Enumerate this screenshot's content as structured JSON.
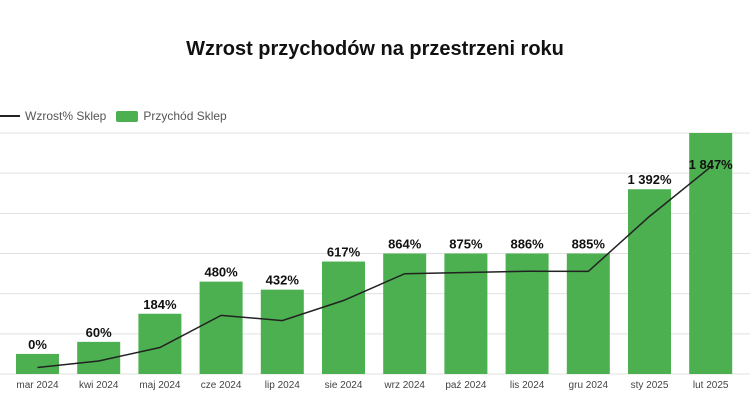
{
  "colors": {
    "bar": "#4caf50",
    "line": "#222222",
    "grid": "#e0e0e0"
  },
  "chart_data": {
    "type": "bar",
    "title": "Wzrost przychodów na przestrzeni roku",
    "categories": [
      "mar 2024",
      "kwi 2024",
      "maj 2024",
      "cze 2024",
      "lip 2024",
      "sie 2024",
      "wrz 2024",
      "paź 2024",
      "lis 2024",
      "gru 2024",
      "sty 2025",
      "lut 2025"
    ],
    "series": [
      {
        "name": "Przychód Sklep",
        "type": "bar",
        "values": [
          0.5,
          0.8,
          1.5,
          2.3,
          2.1,
          2.8,
          3.0,
          3.0,
          3.0,
          3.0,
          4.6,
          6.0
        ]
      },
      {
        "name": "Wzrost% Sklep",
        "type": "line",
        "values": [
          0,
          60,
          184,
          480,
          432,
          617,
          864,
          875,
          886,
          885,
          1392,
          1847
        ]
      }
    ],
    "data_labels": [
      "0%",
      "60%",
      "184%",
      "480%",
      "432%",
      "617%",
      "864%",
      "875%",
      "886%",
      "885%",
      "1 392%",
      "1 847%"
    ],
    "legend_position": "top-left",
    "grid": true
  }
}
